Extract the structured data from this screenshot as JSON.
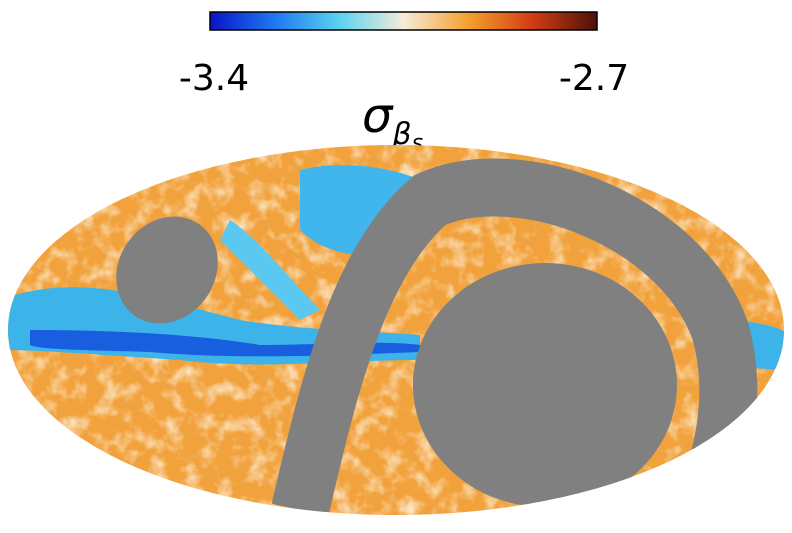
{
  "colorbar": {
    "min": -3.4,
    "max": -2.7,
    "colors": [
      "#0a14c8",
      "#1e78f0",
      "#5ad2f0",
      "#f4ecd8",
      "#f5a030",
      "#d23c14",
      "#501008"
    ]
  },
  "title": {
    "symbol": "σ",
    "subscript": "β",
    "subsubscript": "s"
  }
}
